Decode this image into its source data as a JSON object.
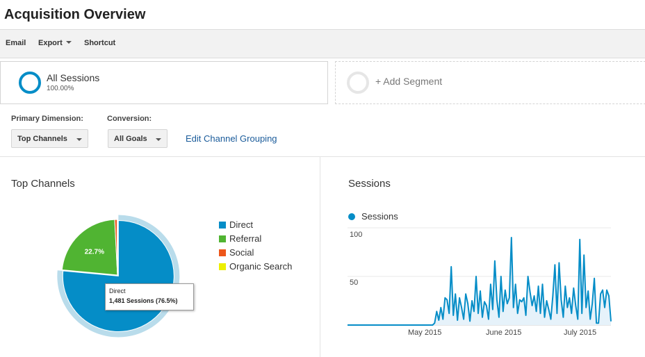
{
  "page": {
    "title": "Acquisition Overview"
  },
  "toolbar": {
    "email": "Email",
    "export": "Export",
    "shortcut": "Shortcut"
  },
  "segments": {
    "active": {
      "name": "All Sessions",
      "percent": "100.00%"
    },
    "add_label": "+ Add Segment"
  },
  "controls": {
    "primary_dimension_label": "Primary Dimension:",
    "primary_dimension_value": "Top Channels",
    "conversion_label": "Conversion:",
    "conversion_value": "All Goals",
    "edit_grouping_link": "Edit Channel Grouping"
  },
  "top_channels": {
    "title": "Top Channels",
    "legend": [
      {
        "label": "Direct",
        "color": "#058dc7"
      },
      {
        "label": "Referral",
        "color": "#50b432"
      },
      {
        "label": "Social",
        "color": "#ed561b"
      },
      {
        "label": "Organic Search",
        "color": "#edef00"
      }
    ],
    "tooltip": {
      "line1": "Direct",
      "line2": "1,481 Sessions (76.5%)"
    }
  },
  "sessions_panel": {
    "title": "Sessions",
    "legend_label": "Sessions",
    "y_ticks": [
      "100",
      "50"
    ],
    "x_ticks": [
      "May 2015",
      "June 2015",
      "July 2015"
    ]
  },
  "chart_data": [
    {
      "type": "pie",
      "categories": [
        "Direct",
        "Referral",
        "Social",
        "Organic Search"
      ],
      "values": [
        76.5,
        22.7,
        0.7,
        0.1
      ],
      "data_labels": [
        "",
        "22.7%",
        "",
        ""
      ],
      "highlighted": "Direct"
    },
    {
      "type": "area",
      "series": [
        {
          "name": "Sessions",
          "color": "#058dc7"
        }
      ],
      "ylim": [
        0,
        100
      ],
      "y_ticks": [
        50,
        100
      ],
      "x_ticks": [
        "May 2015",
        "June 2015",
        "July 2015"
      ],
      "values": [
        0,
        0,
        0,
        0,
        0,
        0,
        0,
        0,
        0,
        0,
        0,
        0,
        0,
        0,
        0,
        0,
        0,
        0,
        0,
        0,
        0,
        0,
        0,
        0,
        0,
        0,
        0,
        0,
        0,
        0,
        0,
        0,
        0,
        0,
        0,
        0,
        0,
        0,
        0,
        0,
        0,
        0,
        2,
        14,
        5,
        18,
        6,
        28,
        26,
        12,
        60,
        10,
        32,
        5,
        28,
        18,
        6,
        32,
        22,
        4,
        25,
        14,
        50,
        12,
        35,
        8,
        24,
        20,
        6,
        42,
        16,
        66,
        26,
        8,
        50,
        14,
        36,
        22,
        28,
        90,
        18,
        42,
        12,
        26,
        24,
        28,
        10,
        50,
        34,
        20,
        30,
        14,
        40,
        12,
        42,
        8,
        25,
        16,
        6,
        30,
        62,
        12,
        64,
        26,
        8,
        40,
        18,
        28,
        12,
        38,
        20,
        6,
        88,
        12,
        72,
        18,
        35,
        6,
        22,
        48,
        2,
        2,
        32,
        36,
        18,
        36,
        30,
        4
      ]
    }
  ]
}
